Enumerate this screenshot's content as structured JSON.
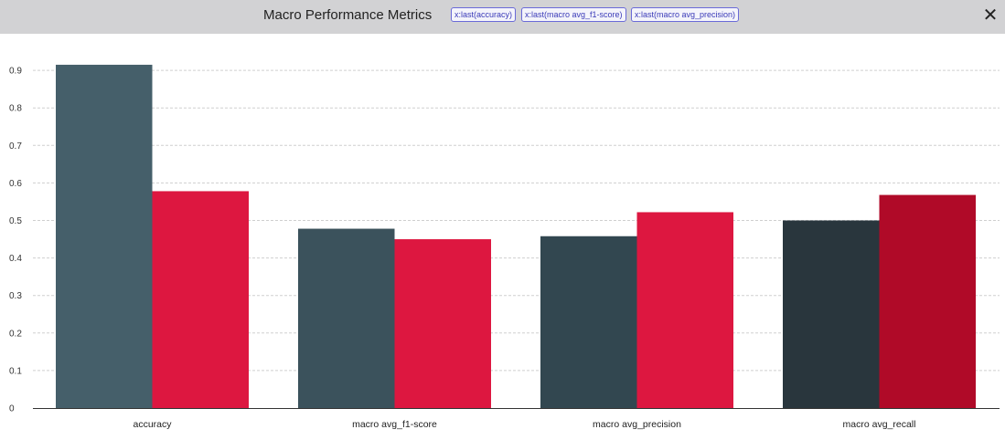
{
  "header": {
    "title": "Macro Performance Metrics",
    "tags": [
      "x:last(accuracy)",
      "x:last(macro avg_f1-score)",
      "x:last(macro avg_precision)"
    ],
    "close_icon": "close-icon"
  },
  "colors": {
    "header_bg": "#d2d2d4",
    "series_dark": [
      "#455f6a",
      "#3b525c",
      "#324750",
      "#29363d"
    ],
    "series_red": [
      "#dd1740",
      "#dd1740",
      "#dd1740",
      "#b00a28"
    ]
  },
  "chart_data": {
    "type": "bar",
    "categories": [
      "accuracy",
      "macro avg_f1-score",
      "macro avg_precision",
      "macro avg_recall"
    ],
    "series": [
      {
        "values": [
          0.915,
          0.478,
          0.458,
          0.5
        ]
      },
      {
        "values": [
          0.578,
          0.45,
          0.522,
          0.568
        ]
      }
    ],
    "yticks": [
      "0",
      "0.1",
      "0.2",
      "0.3",
      "0.4",
      "0.5",
      "0.6",
      "0.7",
      "0.8",
      "0.9"
    ],
    "ylim": [
      0,
      0.95
    ],
    "grid": true
  }
}
